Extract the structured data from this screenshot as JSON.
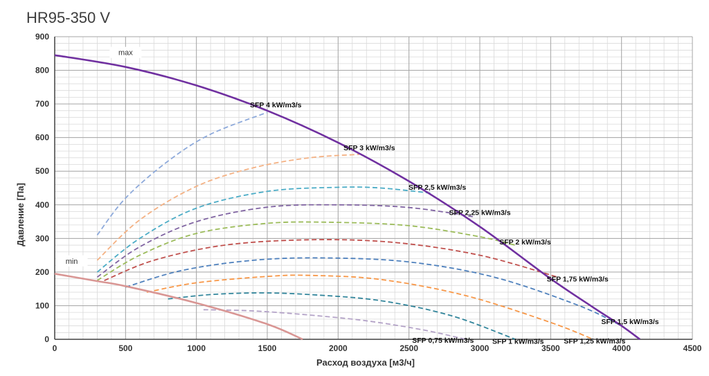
{
  "chart_data": {
    "type": "line",
    "title": "HR95-350 V",
    "xlabel": "Расход воздуха [м3/ч]",
    "ylabel": "Давление [Па]",
    "xlim": [
      0,
      4500
    ],
    "ylim": [
      0,
      900
    ],
    "xticks": [
      0,
      500,
      1000,
      1500,
      2000,
      2500,
      3000,
      3500,
      4000,
      4500
    ],
    "yticks": [
      0,
      100,
      200,
      300,
      400,
      500,
      600,
      700,
      800,
      900
    ],
    "grid": true,
    "series": [
      {
        "name": "max",
        "color": "#7030a0",
        "style": "solid",
        "x": [
          0,
          500,
          1000,
          1500,
          2000,
          2500,
          3000,
          3500,
          3800,
          4000,
          4130
        ],
        "y": [
          845,
          810,
          755,
          680,
          585,
          470,
          335,
          180,
          95,
          40,
          0
        ]
      },
      {
        "name": "min",
        "color": "#d99694",
        "style": "solid",
        "x": [
          0,
          300,
          500,
          1000,
          1500,
          1750
        ],
        "y": [
          195,
          173,
          158,
          108,
          45,
          0
        ]
      },
      {
        "name": "SFP 4 kW/m3/s",
        "color": "#8eaadb",
        "style": "dashed",
        "x": [
          300,
          500,
          800,
          1100,
          1500
        ],
        "y": [
          310,
          420,
          530,
          610,
          675
        ]
      },
      {
        "name": "SFP 3 kW/m3/s",
        "color": "#f4b183",
        "style": "dashed",
        "x": [
          300,
          600,
          1000,
          1400,
          1800,
          2150
        ],
        "y": [
          235,
          355,
          455,
          510,
          540,
          550
        ]
      },
      {
        "name": "SFP 2,5 kW/m3/s",
        "color": "#4bacc6",
        "style": "dashed",
        "x": [
          300,
          600,
          1000,
          1500,
          2000,
          2300,
          2650
        ],
        "y": [
          200,
          300,
          390,
          440,
          452,
          450,
          435
        ]
      },
      {
        "name": "SFP 2,25 kW/m3/s",
        "color": "#8064a2",
        "style": "dashed",
        "x": [
          300,
          600,
          1000,
          1500,
          2000,
          2500,
          2950
        ],
        "y": [
          185,
          275,
          350,
          393,
          400,
          392,
          365
        ]
      },
      {
        "name": "SFP 2 kW/m3/s",
        "color": "#9bbb59",
        "style": "dashed",
        "x": [
          300,
          600,
          1000,
          1500,
          1950,
          2500,
          3000,
          3250
        ],
        "y": [
          175,
          250,
          315,
          345,
          348,
          338,
          305,
          280
        ]
      },
      {
        "name": "SFP 1,75 kW/m3/s",
        "color": "#c0504d",
        "style": "dashed",
        "x": [
          350,
          700,
          1200,
          1800,
          2400,
          3000,
          3550
        ],
        "y": [
          175,
          235,
          280,
          296,
          288,
          250,
          185
        ]
      },
      {
        "name": "SFP 1,5 kW/m3/s",
        "color": "#4f81bd",
        "style": "dashed",
        "x": [
          500,
          900,
          1400,
          1900,
          2500,
          3100,
          3700,
          4000
        ],
        "y": [
          155,
          205,
          235,
          242,
          230,
          185,
          100,
          40
        ]
      },
      {
        "name": "SFP 1,25 kW/m3/s",
        "color": "#f79646",
        "style": "dashed",
        "x": [
          650,
          1000,
          1500,
          1800,
          2300,
          2900,
          3500,
          3800
        ],
        "y": [
          140,
          168,
          187,
          190,
          178,
          130,
          50,
          0
        ]
      },
      {
        "name": "SFP 1 kW/m3/s",
        "color": "#31859b",
        "style": "dashed",
        "x": [
          800,
          1100,
          1450,
          1800,
          2300,
          2800,
          3250
        ],
        "y": [
          120,
          133,
          138,
          133,
          115,
          70,
          0
        ]
      },
      {
        "name": "SFP 0,75 kW/m3/s",
        "color": "#b3a2c7",
        "style": "dashed",
        "x": [
          1050,
          1300,
          1500,
          1800,
          2200,
          2600,
          2900
        ],
        "y": [
          88,
          86,
          82,
          72,
          55,
          28,
          0
        ]
      }
    ],
    "annotations": [
      {
        "text": "max",
        "x": 500,
        "y": 845
      },
      {
        "text": "min",
        "x": 120,
        "y": 225
      },
      {
        "text": "SFP 4 kW/m3/s",
        "x": 1560,
        "y": 690
      },
      {
        "text": "SFP 3 kW/m3/s",
        "x": 2220,
        "y": 562
      },
      {
        "text": "SFP 2,5 kW/m3/s",
        "x": 2700,
        "y": 445
      },
      {
        "text": "SFP 2,25 kW/m3/s",
        "x": 3000,
        "y": 370
      },
      {
        "text": "SFP 2 kW/m3/s",
        "x": 3320,
        "y": 282
      },
      {
        "text": "SFP 1,75 kW/m3/s",
        "x": 3690,
        "y": 172
      },
      {
        "text": "SFP 1,5 kW/m3/s",
        "x": 4060,
        "y": 45
      },
      {
        "text": "SFP 0,75 kW/m3/s",
        "x": 2740,
        "y": -10
      },
      {
        "text": "SFP 1 kW/m3/s",
        "x": 3270,
        "y": -13
      },
      {
        "text": "SFP 1,25 kW/m3/s",
        "x": 3810,
        "y": -12
      }
    ]
  }
}
